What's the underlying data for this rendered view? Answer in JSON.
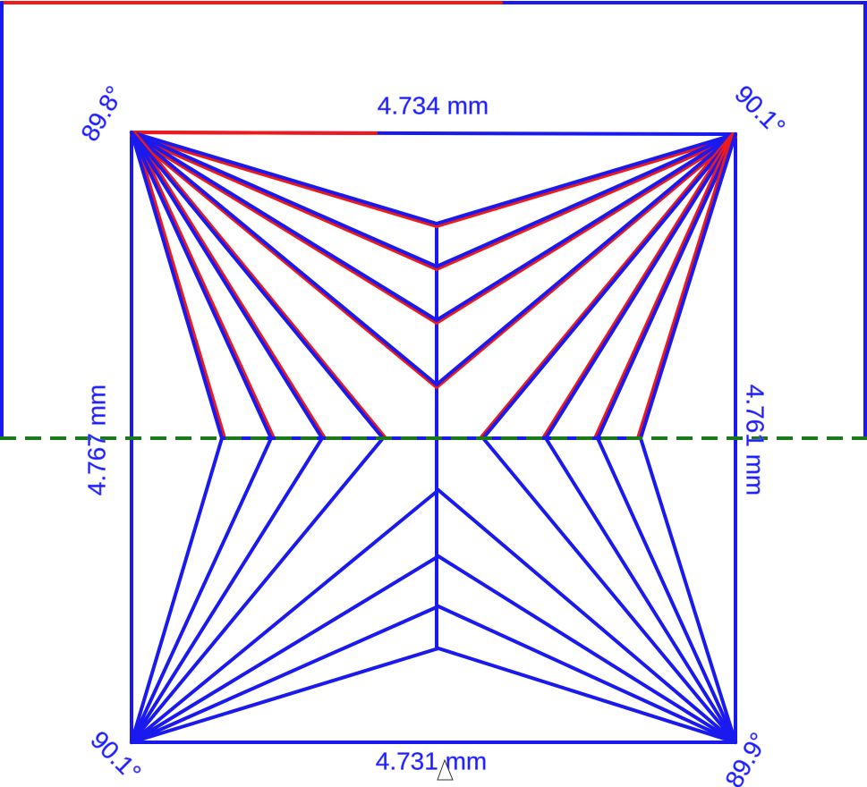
{
  "measurements": {
    "top": "4.734 mm",
    "bottom": "4.731 mm",
    "left": "4.767 mm",
    "right": "4.761 mm"
  },
  "angles": {
    "top_left": "89.8°",
    "top_right": "90.1°",
    "bottom_left": "90.1°",
    "bottom_right": "89.9°"
  }
}
